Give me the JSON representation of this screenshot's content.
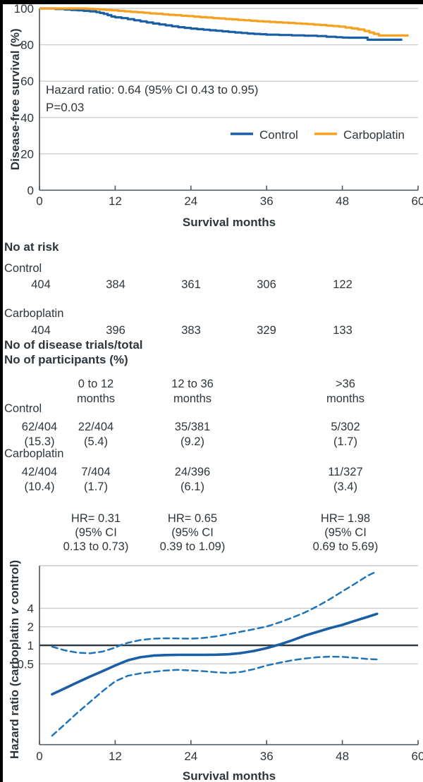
{
  "colors": {
    "control_blue": "#1a5ea6",
    "carboplatin_orange": "#f7a01e",
    "ci_dashed_blue": "#1f74b8",
    "grid_gray": "#c9cdd0",
    "axis_gray": "#4d575e",
    "reference_black": "#333b41",
    "ink": "#2e363b"
  },
  "chart_data": [
    {
      "id": "km",
      "type": "line",
      "subtype": "kaplan-meier-step",
      "ylabel": "Disease-free survival (%)",
      "xlabel": "Survival months",
      "xlim": [
        0,
        60
      ],
      "ylim": [
        0,
        100
      ],
      "x_ticks": [
        0,
        12,
        24,
        36,
        48,
        60
      ],
      "y_ticks": [
        100,
        80,
        60,
        40,
        20,
        0
      ],
      "grid": true,
      "annotation": [
        "Hazard ratio: 0.64 (95% CI 0.43 to 0.95)",
        "P=0.03"
      ],
      "legend": [
        {
          "label": "Control",
          "color": "#1a5ea6"
        },
        {
          "label": "Carboplatin",
          "color": "#f7a01e"
        }
      ],
      "series": [
        {
          "name": "Control",
          "color": "#1a5ea6",
          "style": "solid",
          "step": true,
          "points": [
            [
              0,
              100
            ],
            [
              1.5,
              100
            ],
            [
              2.5,
              99.7
            ],
            [
              4,
              99.4
            ],
            [
              5,
              99.2
            ],
            [
              6,
              99
            ],
            [
              7,
              98.7
            ],
            [
              8,
              98.4
            ],
            [
              9,
              98
            ],
            [
              9.6,
              97.5
            ],
            [
              10.2,
              97
            ],
            [
              10.8,
              96.3
            ],
            [
              11.4,
              95.6
            ],
            [
              12,
              95.1
            ],
            [
              13,
              94.7
            ],
            [
              14,
              94.1
            ],
            [
              15,
              93.5
            ],
            [
              16,
              92.9
            ],
            [
              17,
              92.3
            ],
            [
              18,
              91.7
            ],
            [
              19,
              91.2
            ],
            [
              20,
              90.7
            ],
            [
              21,
              90.2
            ],
            [
              22,
              89.7
            ],
            [
              23,
              89.3
            ],
            [
              24,
              88.9
            ],
            [
              25,
              88.6
            ],
            [
              26,
              88.3
            ],
            [
              27,
              88
            ],
            [
              28,
              87.7
            ],
            [
              29,
              87.4
            ],
            [
              30,
              87.1
            ],
            [
              31,
              86.8
            ],
            [
              32,
              86.5
            ],
            [
              33,
              86.2
            ],
            [
              34,
              86
            ],
            [
              35,
              85.8
            ],
            [
              36,
              85.6
            ],
            [
              38,
              85.4
            ],
            [
              40,
              85.2
            ],
            [
              42,
              85
            ],
            [
              44,
              84.8
            ],
            [
              45.5,
              84.4
            ],
            [
              47,
              84.2
            ],
            [
              48,
              84
            ],
            [
              49,
              83.9
            ],
            [
              52,
              82.8
            ],
            [
              57.5,
              82.8
            ]
          ]
        },
        {
          "name": "Carboplatin",
          "color": "#f7a01e",
          "style": "solid",
          "step": true,
          "points": [
            [
              0,
              100
            ],
            [
              6.5,
              100
            ],
            [
              7.5,
              99.8
            ],
            [
              8.5,
              99.6
            ],
            [
              9.5,
              99.4
            ],
            [
              10.5,
              99.2
            ],
            [
              11.5,
              99
            ],
            [
              12.5,
              98.7
            ],
            [
              13.5,
              98.4
            ],
            [
              14.5,
              98.1
            ],
            [
              15.5,
              97.9
            ],
            [
              16.5,
              97.6
            ],
            [
              17.5,
              97.3
            ],
            [
              18.5,
              97.1
            ],
            [
              19.5,
              96.8
            ],
            [
              20.5,
              96.5
            ],
            [
              21.5,
              96.3
            ],
            [
              22.5,
              96
            ],
            [
              23.5,
              95.8
            ],
            [
              24.5,
              95.5
            ],
            [
              25.5,
              95.2
            ],
            [
              26.5,
              95
            ],
            [
              27.5,
              94.7
            ],
            [
              28.5,
              94.5
            ],
            [
              29.5,
              94.2
            ],
            [
              30.5,
              94
            ],
            [
              31.5,
              93.7
            ],
            [
              32.5,
              93.5
            ],
            [
              33.5,
              93.2
            ],
            [
              34.5,
              93
            ],
            [
              35.5,
              92.8
            ],
            [
              36.5,
              92.6
            ],
            [
              37.5,
              92.4
            ],
            [
              38.5,
              92.2
            ],
            [
              39.5,
              92
            ],
            [
              40.5,
              91.8
            ],
            [
              41.5,
              91.6
            ],
            [
              42.5,
              91.4
            ],
            [
              43.5,
              91.1
            ],
            [
              44.5,
              90.9
            ],
            [
              45.5,
              90.6
            ],
            [
              46.5,
              90.3
            ],
            [
              47.5,
              90
            ],
            [
              48.5,
              89.5
            ],
            [
              49.5,
              89
            ],
            [
              50.5,
              88.4
            ],
            [
              51.5,
              87.6
            ],
            [
              52.3,
              86.8
            ],
            [
              53,
              86
            ],
            [
              53.8,
              85.1
            ],
            [
              58.5,
              85.1
            ]
          ]
        }
      ]
    },
    {
      "id": "hr",
      "type": "line",
      "subtype": "smoothed-hazard-ratio",
      "yscale": "log",
      "ylabel_parts": [
        "Hazard ratio (carboplatin ",
        "v",
        " control)"
      ],
      "xlabel": "Survival months",
      "xlim": [
        0,
        60
      ],
      "ylim": [
        0.028,
        20
      ],
      "x_ticks": [
        0,
        12,
        24,
        36,
        48,
        60
      ],
      "y_ticks": [
        4,
        2,
        1,
        0.5
      ],
      "reference_line": 1,
      "grid": true,
      "series": [
        {
          "name": "Hazard ratio",
          "color": "#1a5ea6",
          "style": "solid",
          "points": [
            [
              2,
              0.16
            ],
            [
              4,
              0.2
            ],
            [
              6,
              0.25
            ],
            [
              8,
              0.31
            ],
            [
              10,
              0.38
            ],
            [
              12,
              0.47
            ],
            [
              14,
              0.57
            ],
            [
              16,
              0.64
            ],
            [
              18,
              0.68
            ],
            [
              20,
              0.695
            ],
            [
              22,
              0.7
            ],
            [
              24,
              0.7
            ],
            [
              26,
              0.7
            ],
            [
              28,
              0.705
            ],
            [
              30,
              0.715
            ],
            [
              32,
              0.75
            ],
            [
              34,
              0.81
            ],
            [
              36,
              0.9
            ],
            [
              38,
              1.03
            ],
            [
              40,
              1.2
            ],
            [
              42,
              1.43
            ],
            [
              44,
              1.65
            ],
            [
              46,
              1.9
            ],
            [
              48,
              2.15
            ],
            [
              50,
              2.5
            ],
            [
              52,
              2.9
            ],
            [
              53.5,
              3.25
            ]
          ]
        },
        {
          "name": "Upper 95% CI",
          "color": "#1f74b8",
          "style": "dashed",
          "points": [
            [
              2,
              0.95
            ],
            [
              4,
              0.83
            ],
            [
              6,
              0.76
            ],
            [
              8,
              0.74
            ],
            [
              10,
              0.79
            ],
            [
              12,
              0.92
            ],
            [
              13,
              1.02
            ],
            [
              14,
              1.1
            ],
            [
              16,
              1.22
            ],
            [
              18,
              1.28
            ],
            [
              20,
              1.3
            ],
            [
              22,
              1.29
            ],
            [
              24,
              1.28
            ],
            [
              26,
              1.32
            ],
            [
              28,
              1.4
            ],
            [
              30,
              1.52
            ],
            [
              32,
              1.67
            ],
            [
              34,
              1.83
            ],
            [
              36,
              2.02
            ],
            [
              38,
              2.35
            ],
            [
              40,
              2.8
            ],
            [
              42,
              3.4
            ],
            [
              44,
              4.3
            ],
            [
              46,
              5.6
            ],
            [
              48,
              7.5
            ],
            [
              50,
              10
            ],
            [
              52,
              13.5
            ],
            [
              53.5,
              16
            ]
          ]
        },
        {
          "name": "Lower 95% CI",
          "color": "#1f74b8",
          "style": "dashed",
          "points": [
            [
              2,
              0.034
            ],
            [
              4,
              0.052
            ],
            [
              6,
              0.08
            ],
            [
              8,
              0.12
            ],
            [
              10,
              0.18
            ],
            [
              12,
              0.26
            ],
            [
              14,
              0.32
            ],
            [
              16,
              0.35
            ],
            [
              18,
              0.37
            ],
            [
              20,
              0.39
            ],
            [
              22,
              0.4
            ],
            [
              24,
              0.39
            ],
            [
              26,
              0.38
            ],
            [
              28,
              0.365
            ],
            [
              30,
              0.355
            ],
            [
              32,
              0.37
            ],
            [
              34,
              0.41
            ],
            [
              36,
              0.47
            ],
            [
              38,
              0.52
            ],
            [
              40,
              0.57
            ],
            [
              42,
              0.61
            ],
            [
              44,
              0.64
            ],
            [
              46,
              0.655
            ],
            [
              48,
              0.65
            ],
            [
              50,
              0.625
            ],
            [
              52,
              0.6
            ],
            [
              53.5,
              0.59
            ]
          ]
        }
      ]
    }
  ],
  "risk_table": {
    "heading": "No at risk",
    "rows": [
      {
        "label": "Control",
        "values": [
          "404",
          "384",
          "361",
          "306",
          "122"
        ]
      },
      {
        "label": "Carboplatin",
        "values": [
          "404",
          "396",
          "383",
          "329",
          "133"
        ]
      }
    ]
  },
  "events_table": {
    "heading_lines": [
      "No of disease trials/total",
      "No of participants (%)"
    ],
    "col_headers": [
      [
        "0 to 12",
        "months"
      ],
      [
        "12 to 36",
        "months"
      ],
      [
        ">36",
        "months"
      ]
    ],
    "rows": [
      {
        "label": "Control",
        "cells": [
          [
            "62/404",
            "(15.3)"
          ],
          [
            "22/404",
            "(5.4)"
          ],
          [
            "35/381",
            "(9.2)"
          ],
          [
            "5/302",
            "(1.7)"
          ]
        ]
      },
      {
        "label": "Carboplatin",
        "cells": [
          [
            "42/404",
            "(10.4)"
          ],
          [
            "7/404",
            "(1.7)"
          ],
          [
            "24/396",
            "(6.1)"
          ],
          [
            "11/327",
            "(3.4)"
          ]
        ]
      }
    ],
    "hr_cells": [
      [
        "HR= 0.31",
        "(95% CI",
        "0.13 to 0.73)"
      ],
      [
        "HR= 0.65",
        "(95% CI",
        "0.39 to 1.09)"
      ],
      [
        "HR= 1.98",
        "(95% CI",
        "0.69 to 5.69)"
      ]
    ]
  }
}
